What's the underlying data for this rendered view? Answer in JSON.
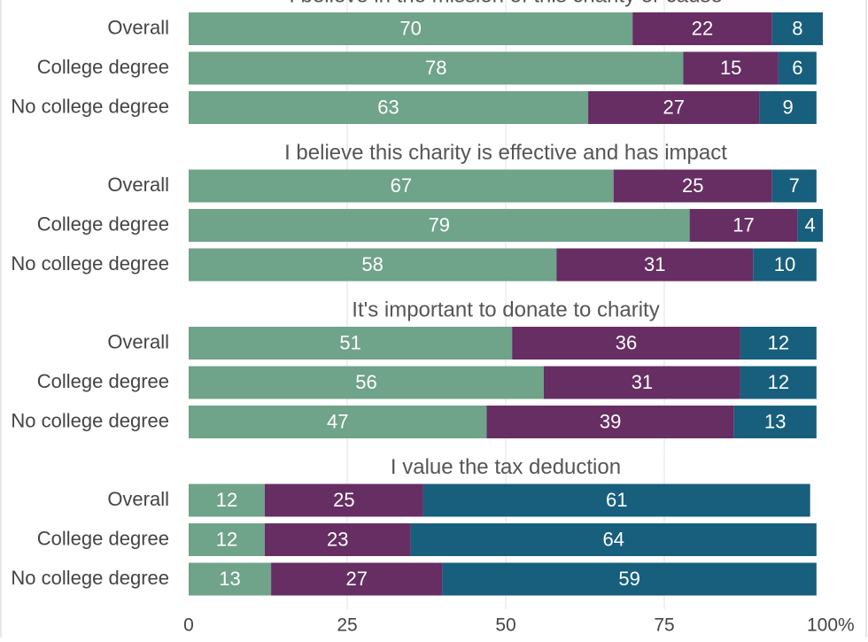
{
  "chart_data": {
    "type": "bar",
    "orientation": "horizontal",
    "stacked": true,
    "xlim": [
      0,
      100
    ],
    "x_ticks": [
      "0",
      "25",
      "50",
      "75",
      "100%"
    ],
    "grid": true,
    "colors": [
      "#6fa38a",
      "#662e63",
      "#175f7d"
    ],
    "groups": [
      {
        "title": "I believe in the mission of this charity or cause",
        "rows": [
          {
            "label": "Overall",
            "values": [
              70,
              22,
              8
            ]
          },
          {
            "label": "College degree",
            "values": [
              78,
              15,
              6
            ]
          },
          {
            "label": "No college degree",
            "values": [
              63,
              27,
              9
            ]
          }
        ]
      },
      {
        "title": "I believe this charity is effective and has impact",
        "rows": [
          {
            "label": "Overall",
            "values": [
              67,
              25,
              7
            ]
          },
          {
            "label": "College degree",
            "values": [
              79,
              17,
              4
            ]
          },
          {
            "label": "No college degree",
            "values": [
              58,
              31,
              10
            ]
          }
        ]
      },
      {
        "title": "It's important to donate to charity",
        "rows": [
          {
            "label": "Overall",
            "values": [
              51,
              36,
              12
            ]
          },
          {
            "label": "College degree",
            "values": [
              56,
              31,
              12
            ]
          },
          {
            "label": "No college degree",
            "values": [
              47,
              39,
              13
            ]
          }
        ]
      },
      {
        "title": "I value the tax deduction",
        "rows": [
          {
            "label": "Overall",
            "values": [
              12,
              25,
              61
            ]
          },
          {
            "label": "College degree",
            "values": [
              12,
              23,
              64
            ]
          },
          {
            "label": "No college degree",
            "values": [
              13,
              27,
              59
            ]
          }
        ]
      }
    ]
  }
}
